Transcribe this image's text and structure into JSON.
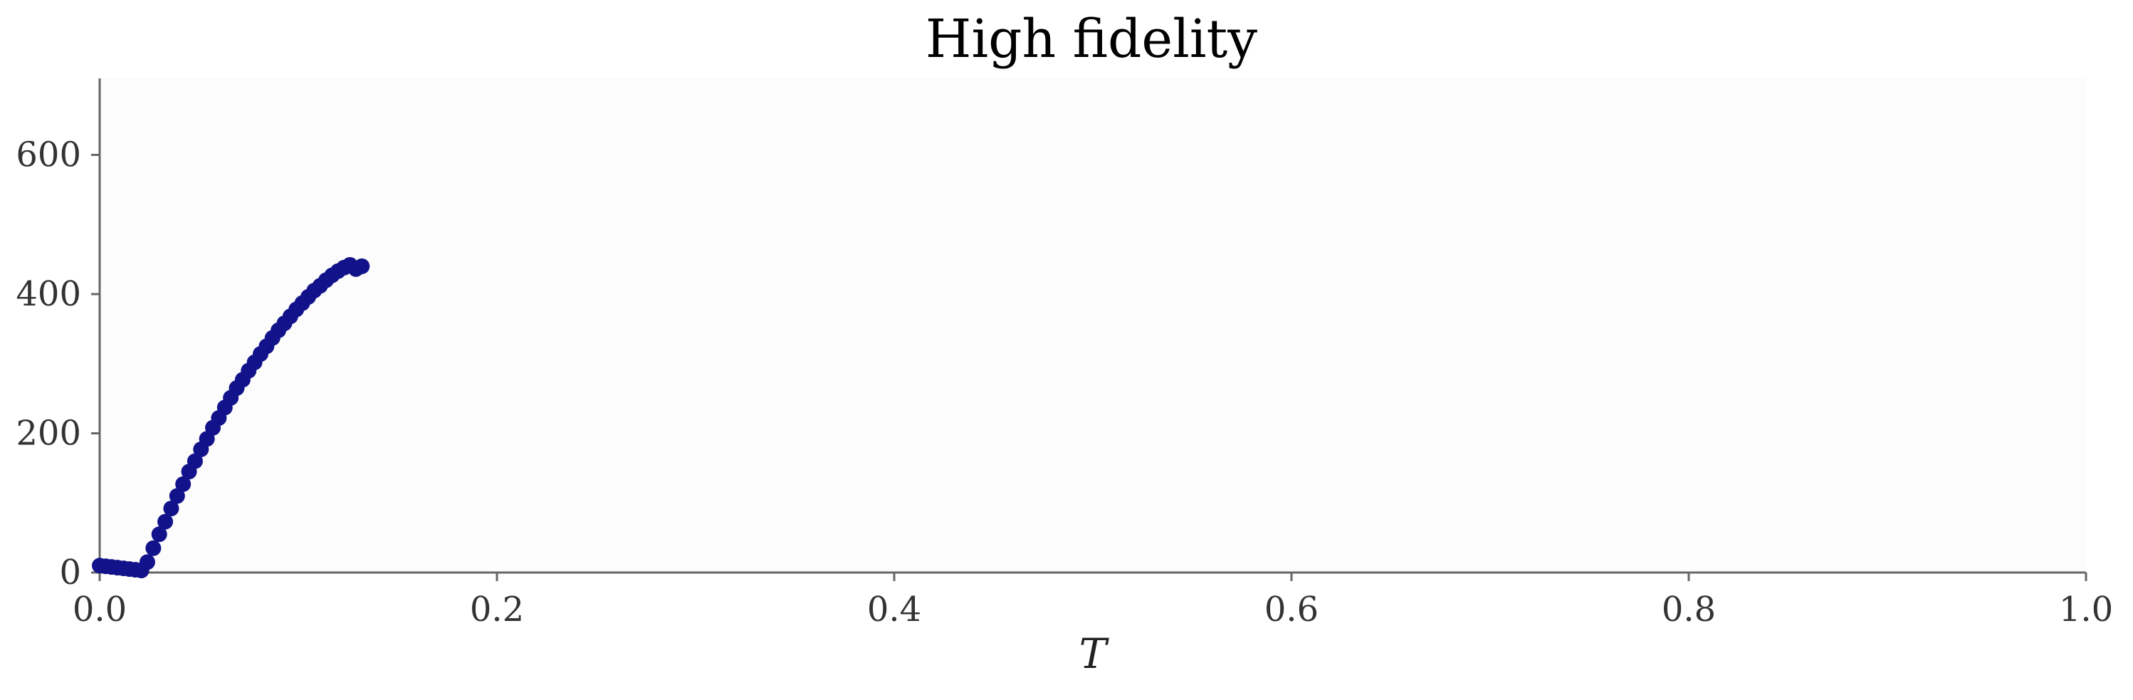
{
  "chart_data": {
    "type": "scatter",
    "title": "High fidelity",
    "xlabel": "T",
    "ylabel": "",
    "xlim": [
      0.0,
      1.0
    ],
    "ylim": [
      0,
      710
    ],
    "xticks": [
      0.0,
      0.2,
      0.4,
      0.6,
      0.8,
      1.0
    ],
    "xtick_labels": [
      "0.0",
      "0.2",
      "0.4",
      "0.6",
      "0.8",
      "1.0"
    ],
    "yticks": [
      0,
      200,
      400,
      600
    ],
    "ytick_labels": [
      "0",
      "200",
      "400",
      "600"
    ],
    "grid": false,
    "legend": "none",
    "colors": {
      "marker": "#12128a",
      "axes": "#666666",
      "plot_bg": "#fcfcfc"
    },
    "series": [
      {
        "x": [
          0.0,
          0.003,
          0.006,
          0.009,
          0.012,
          0.015,
          0.018,
          0.021,
          0.024,
          0.027,
          0.03,
          0.033,
          0.036,
          0.039,
          0.042,
          0.045,
          0.048,
          0.051,
          0.054,
          0.057,
          0.06,
          0.063,
          0.066,
          0.069,
          0.072,
          0.075,
          0.078,
          0.081,
          0.084,
          0.087,
          0.09,
          0.093,
          0.096,
          0.099,
          0.102,
          0.105,
          0.108,
          0.111,
          0.114,
          0.117,
          0.12,
          0.123,
          0.126,
          0.129,
          0.132
        ],
        "y": [
          10,
          9,
          8,
          7,
          6,
          5,
          4,
          3,
          15,
          35,
          55,
          73,
          92,
          110,
          127,
          145,
          160,
          177,
          192,
          208,
          222,
          237,
          251,
          265,
          277,
          290,
          302,
          314,
          325,
          337,
          348,
          358,
          368,
          378,
          387,
          396,
          405,
          412,
          420,
          427,
          433,
          438,
          442,
          436,
          440
        ]
      }
    ]
  }
}
